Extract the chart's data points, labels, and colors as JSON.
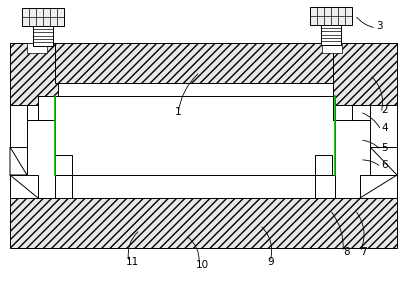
{
  "fig_width": 4.07,
  "fig_height": 2.95,
  "dpi": 100,
  "bg_color": "#ffffff",
  "hatch_fill": "#e8e8e8",
  "white": "#ffffff",
  "lw": 0.7
}
